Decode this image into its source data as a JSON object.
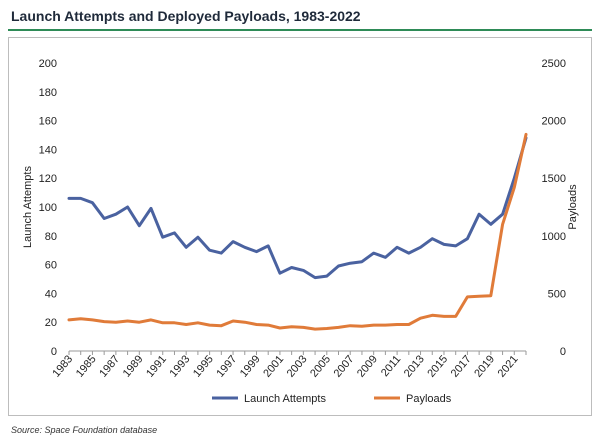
{
  "header": {
    "title": "Launch Attempts and Deployed Payloads, 1983-2022"
  },
  "footer": {
    "source": "Source: Space Foundation database"
  },
  "colors": {
    "accent_rule": "#2e8b57",
    "launch_attempts": "#4a62a0",
    "payloads": "#e07b39"
  },
  "chart_data": {
    "type": "line",
    "title": "Launch Attempts and Deployed Payloads, 1983-2022",
    "x": [
      1983,
      1984,
      1985,
      1986,
      1987,
      1988,
      1989,
      1990,
      1991,
      1992,
      1993,
      1994,
      1995,
      1996,
      1997,
      1998,
      1999,
      2000,
      2001,
      2002,
      2003,
      2004,
      2005,
      2006,
      2007,
      2008,
      2009,
      2010,
      2011,
      2012,
      2013,
      2014,
      2015,
      2016,
      2017,
      2018,
      2019,
      2020,
      2021,
      2022
    ],
    "x_tick_labels": [
      "1983",
      "1985",
      "1987",
      "1989",
      "1991",
      "1993",
      "1995",
      "1997",
      "1999",
      "2001",
      "2003",
      "2005",
      "2007",
      "2009",
      "2011",
      "2013",
      "2015",
      "2017",
      "2019",
      "2021"
    ],
    "y_left": {
      "label": "Launch Attempts",
      "range": [
        0,
        200
      ],
      "ticks": [
        "0",
        "20",
        "40",
        "60",
        "80",
        "100",
        "120",
        "140",
        "160",
        "180",
        "200"
      ]
    },
    "y_right": {
      "label": "Payloads",
      "range": [
        0,
        2500
      ],
      "ticks": [
        "0",
        "500",
        "1000",
        "1500",
        "2000",
        "2500"
      ]
    },
    "grid": false,
    "legend_position": "bottom",
    "series": [
      {
        "name": "Launch Attempts",
        "axis": "left",
        "values": [
          106,
          106,
          103,
          92,
          95,
          100,
          87,
          99,
          79,
          82,
          72,
          79,
          70,
          68,
          76,
          72,
          69,
          73,
          54,
          58,
          56,
          51,
          52,
          59,
          61,
          62,
          68,
          65,
          72,
          68,
          72,
          78,
          74,
          73,
          78,
          95,
          88,
          95,
          120,
          148
        ]
      },
      {
        "name": "Payloads",
        "axis": "right",
        "values": [
          270,
          280,
          270,
          255,
          250,
          260,
          250,
          270,
          245,
          245,
          230,
          245,
          225,
          220,
          260,
          250,
          230,
          225,
          200,
          210,
          205,
          190,
          195,
          205,
          220,
          215,
          225,
          225,
          230,
          230,
          285,
          310,
          300,
          300,
          470,
          475,
          480,
          1100,
          1420,
          1880
        ]
      }
    ]
  }
}
